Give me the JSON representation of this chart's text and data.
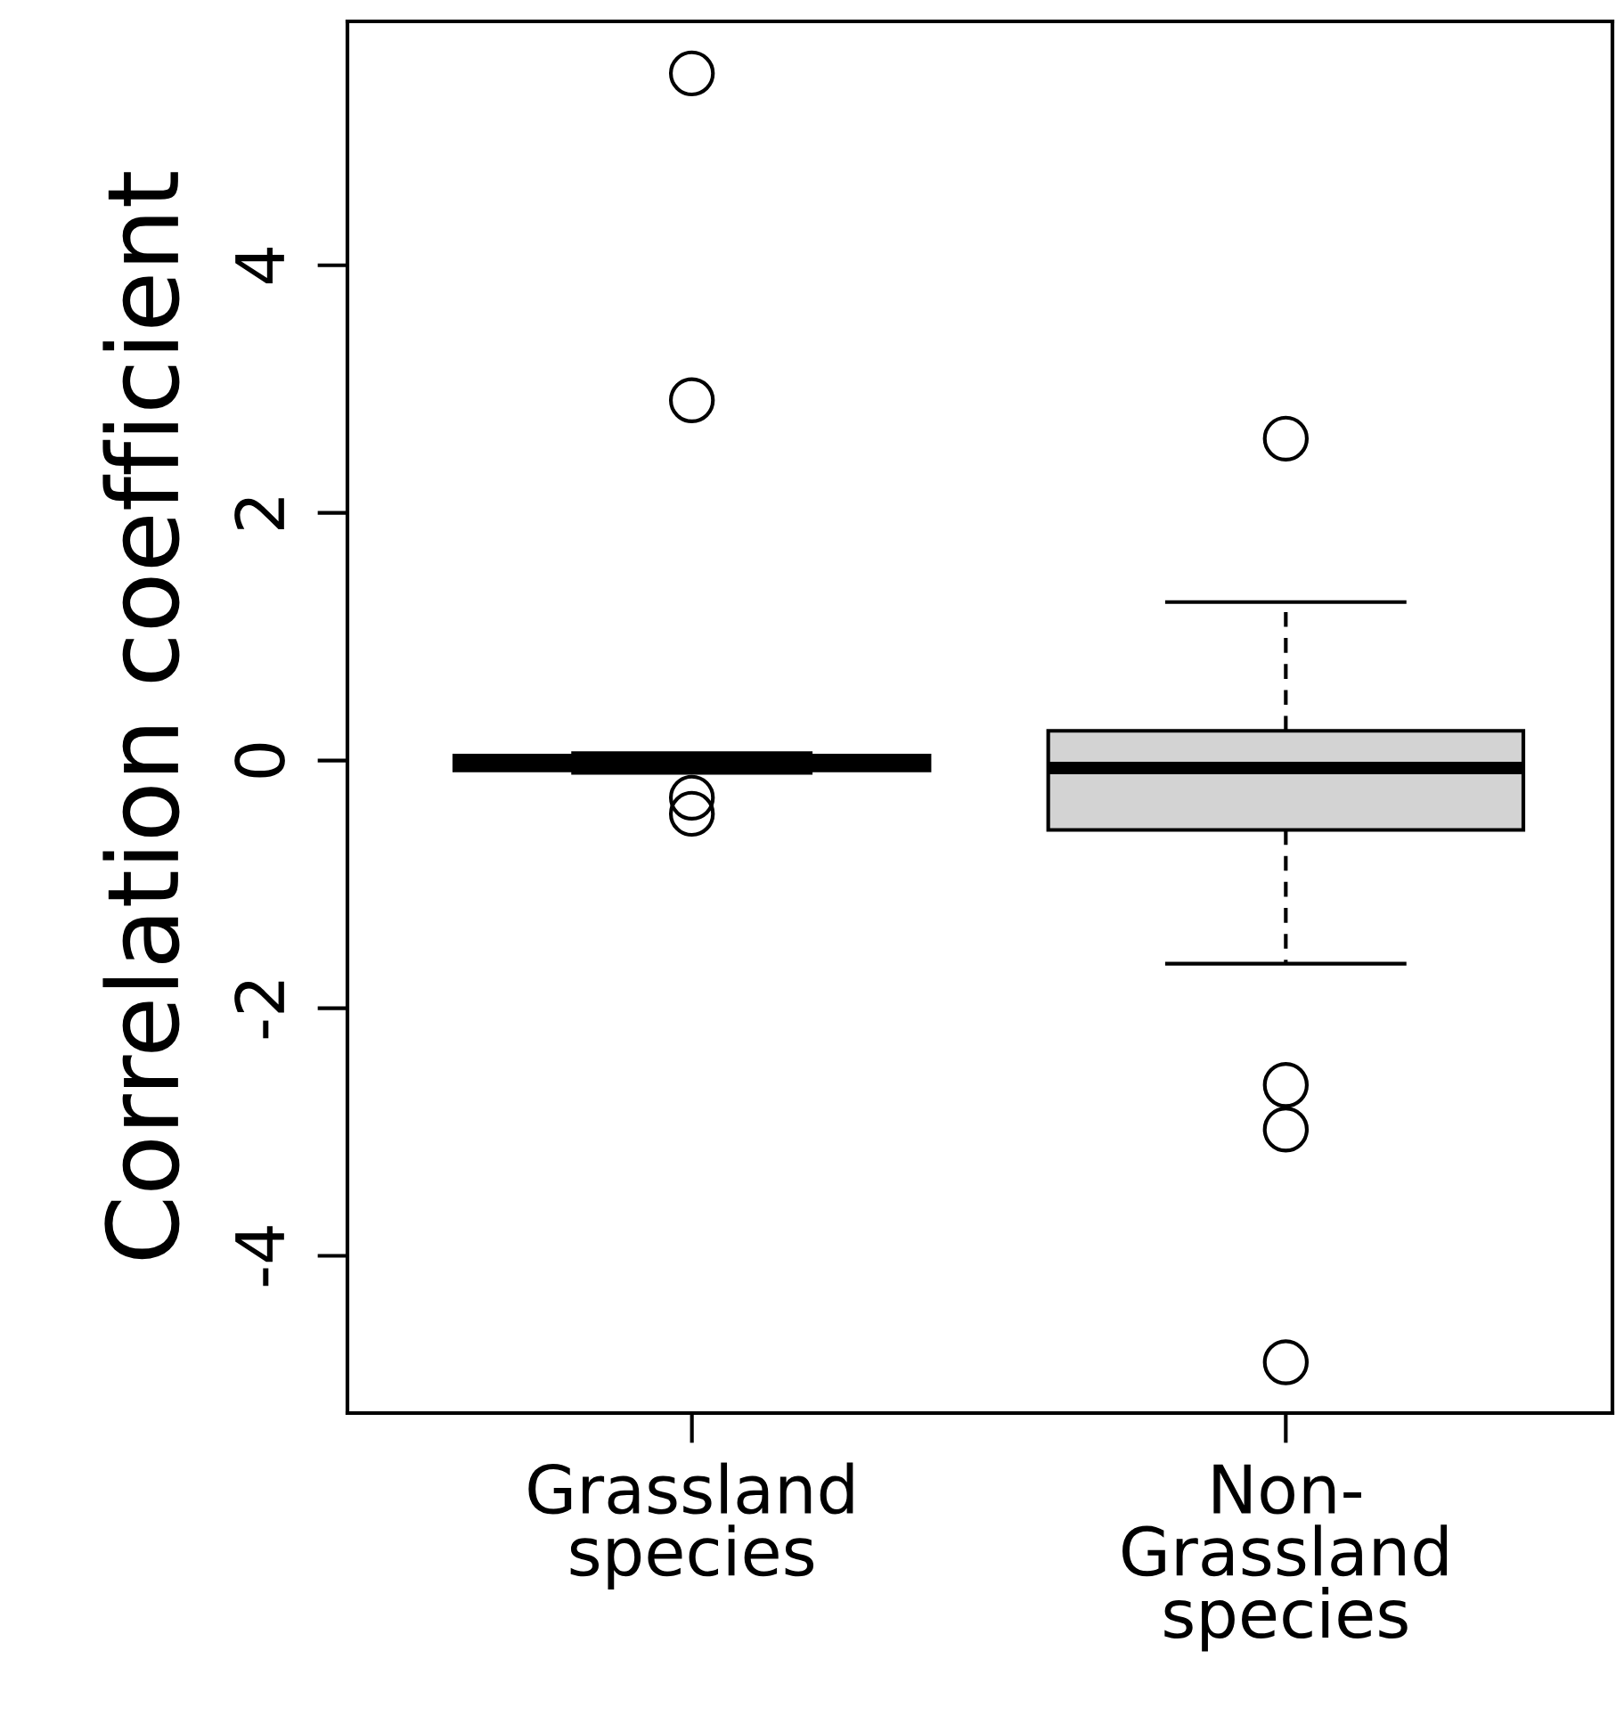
{
  "chart_data": {
    "type": "box",
    "ylabel": "Correlation coefficient",
    "categories": [
      "Grassland\nspecies",
      "Non-\nGrassland\nspecies"
    ],
    "boxes": [
      {
        "low": -0.1,
        "q1": -0.08,
        "median": -0.02,
        "q3": 0.04,
        "high": 0.06,
        "outliers": [
          5.55,
          2.91,
          -0.3,
          -0.43
        ]
      },
      {
        "low": -1.64,
        "q1": -0.56,
        "median": -0.06,
        "q3": 0.24,
        "high": 1.28,
        "outliers": [
          2.6,
          -2.62,
          -2.98,
          -4.86
        ]
      }
    ],
    "color": "#d3d3d3",
    "ylim": [
      -5.27,
      5.97
    ],
    "yticks": [
      {
        "value": -4,
        "label": "-4"
      },
      {
        "value": -2,
        "label": "-2"
      },
      0,
      2,
      4
    ],
    "grid": false,
    "line_style": "dashed"
  }
}
